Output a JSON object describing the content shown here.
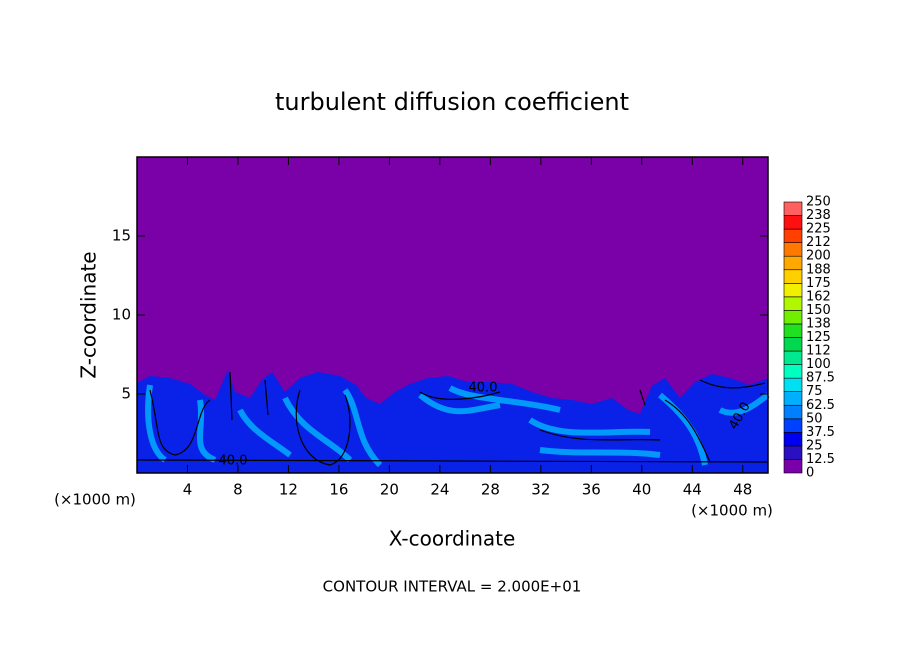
{
  "chart_data": {
    "type": "contour",
    "title": "turbulent diffusion coefficient",
    "xlabel": "X-coordinate",
    "ylabel": "Z-coordinate",
    "x_unit": "(×1000 m)",
    "note": "CONTOUR INTERVAL = 2.000E+01",
    "contour_labels": [
      "40.0",
      "40.0",
      "40.0"
    ],
    "xlim": [
      0,
      50
    ],
    "ylim": [
      0,
      20
    ],
    "xticks": [
      4,
      8,
      12,
      16,
      20,
      24,
      28,
      32,
      36,
      40,
      44,
      48
    ],
    "yticks": [
      5,
      10,
      15
    ],
    "colorbar": {
      "levels": [
        0,
        12.5,
        25,
        37.5,
        50,
        62.5,
        75,
        87.5,
        100,
        112,
        125,
        138,
        150,
        162,
        175,
        188,
        200,
        212,
        225,
        238,
        250
      ],
      "colors": [
        "#7a00a8",
        "#2a10c0",
        "#0000f0",
        "#0040ff",
        "#0080ff",
        "#00b0ff",
        "#00e0f0",
        "#00ffc0",
        "#00e890",
        "#00d850",
        "#20e020",
        "#70f000",
        "#b0f800",
        "#f0f000",
        "#ffd000",
        "#ffa800",
        "#ff7800",
        "#ff4000",
        "#ff1010",
        "#ff6060"
      ]
    }
  }
}
